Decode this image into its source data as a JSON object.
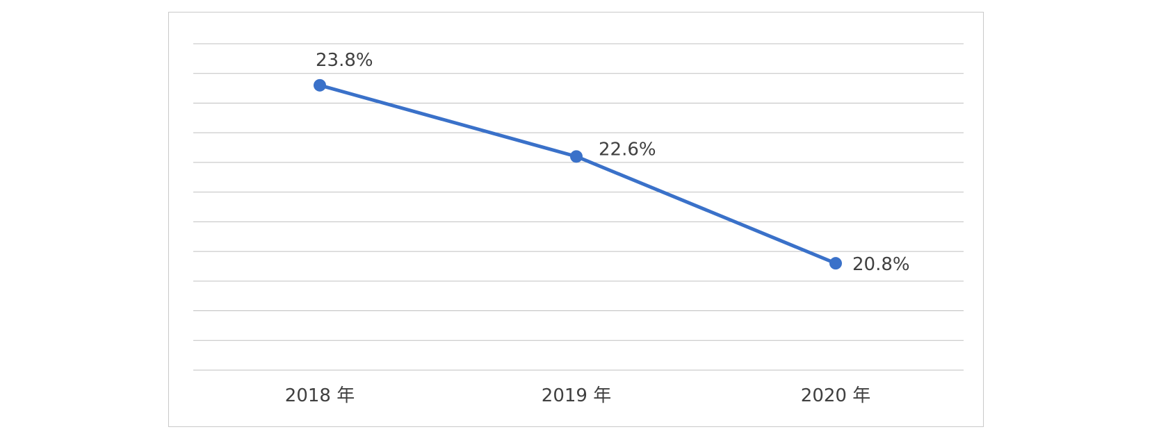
{
  "chart_data": {
    "type": "line",
    "categories": [
      "2018 年",
      "2019 年",
      "2020 年"
    ],
    "series": [
      {
        "values": [
          23.8,
          22.6,
          20.8
        ],
        "labels": [
          "23.8%",
          "22.6%",
          "20.8%"
        ],
        "color": "#3A71C9"
      }
    ],
    "title": "",
    "xlabel": "",
    "ylabel": "",
    "ylim": [
      19,
      24.5
    ],
    "grid": true,
    "legend": "none"
  }
}
